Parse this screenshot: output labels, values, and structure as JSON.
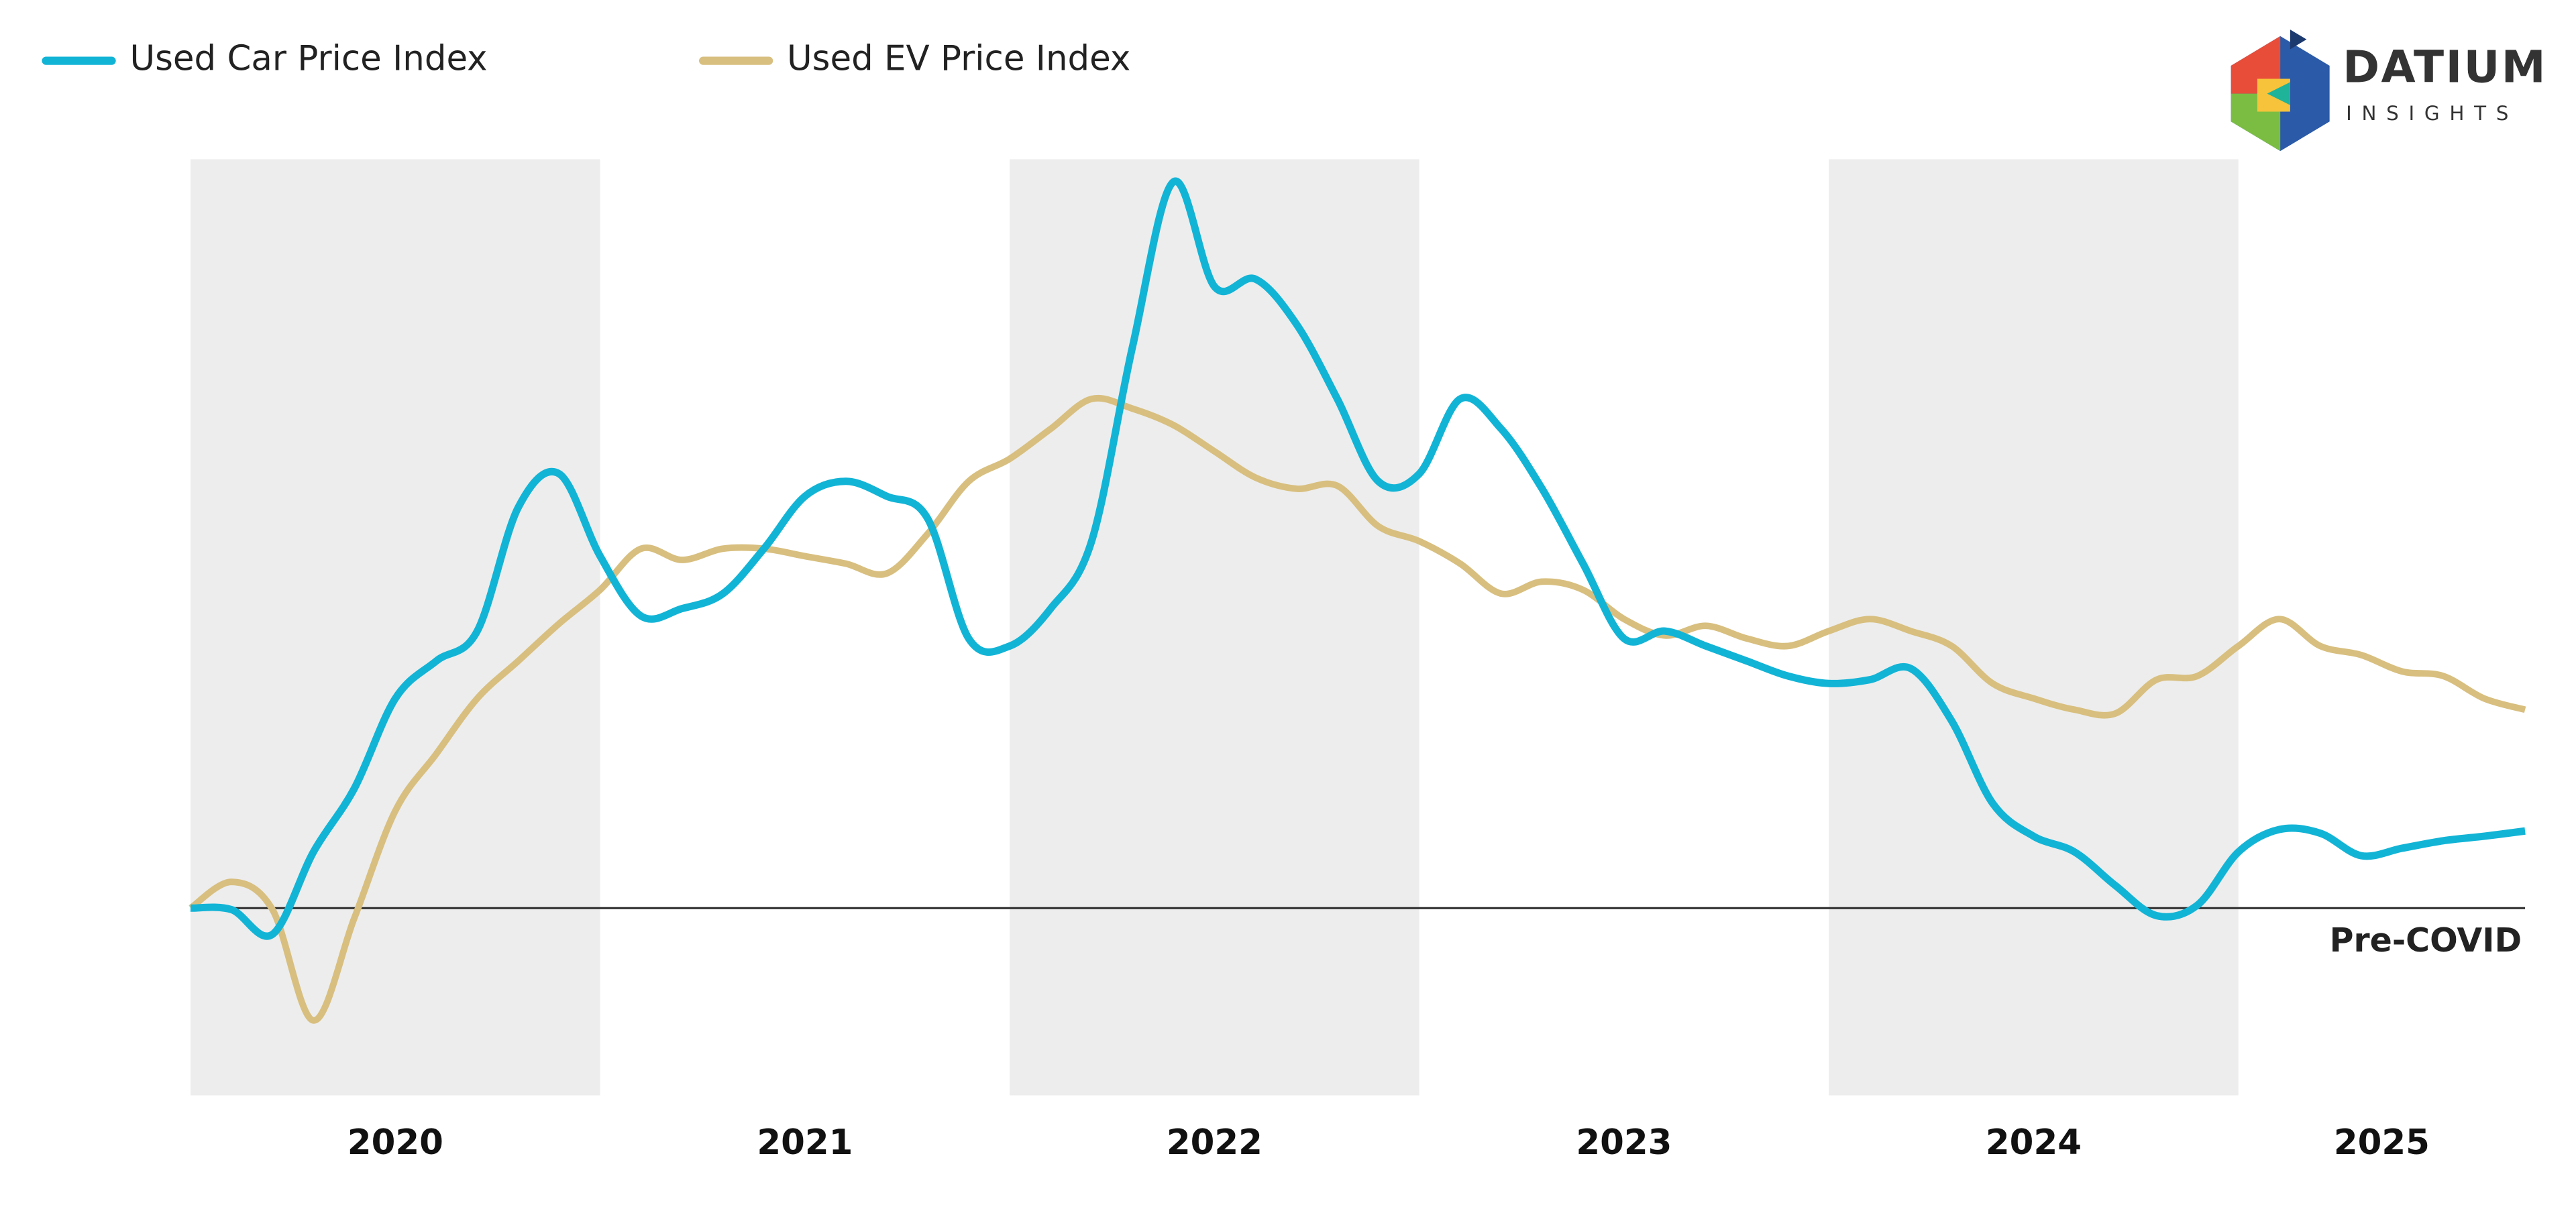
{
  "chart_data": {
    "type": "line",
    "x": [
      2020.0,
      2020.1,
      2020.2,
      2020.3,
      2020.4,
      2020.5,
      2020.6,
      2020.7,
      2020.8,
      2020.9,
      2021.0,
      2021.1,
      2021.2,
      2021.3,
      2021.4,
      2021.5,
      2021.6,
      2021.7,
      2021.8,
      2021.9,
      2022.0,
      2022.1,
      2022.2,
      2022.3,
      2022.4,
      2022.5,
      2022.6,
      2022.7,
      2022.8,
      2022.9,
      2023.0,
      2023.1,
      2023.2,
      2023.3,
      2023.4,
      2023.5,
      2023.6,
      2023.7,
      2023.8,
      2023.9,
      2024.0,
      2024.1,
      2024.2,
      2024.3,
      2024.4,
      2024.5,
      2024.6,
      2024.7,
      2024.8,
      2024.9,
      2025.0,
      2025.1,
      2025.2,
      2025.3,
      2025.4,
      2025.5,
      2025.6,
      2025.7
    ],
    "series": [
      {
        "name": "Used Car Price Index",
        "color": "#12b4d6",
        "values": [
          0,
          -0.2,
          -3.5,
          7.5,
          16,
          28,
          33,
          37,
          53.5,
          58,
          47,
          39,
          40,
          42,
          48,
          55,
          57,
          55,
          52,
          36,
          35,
          40,
          49,
          75,
          97,
          83,
          84,
          78,
          68,
          57,
          58,
          68,
          64,
          56,
          46,
          36,
          37,
          35,
          33,
          31,
          30,
          30.5,
          32,
          25,
          14,
          9.6,
          7.5,
          3,
          -1,
          0.4,
          7.5,
          10.5,
          10,
          7,
          8,
          9,
          9.6,
          10.3
        ]
      },
      {
        "name": "Used EV Price Index",
        "color": "#d8bf7f",
        "values": [
          0,
          3.5,
          -0.2,
          -15,
          -1.3,
          13,
          20.6,
          28,
          33,
          38,
          42.5,
          48,
          46.5,
          48,
          48,
          47,
          46,
          44.7,
          50,
          57,
          60,
          64,
          68,
          66.7,
          64.5,
          61,
          57.5,
          56,
          56.4,
          51,
          49,
          46,
          42,
          43.6,
          42.5,
          38.6,
          36.4,
          37.7,
          36,
          35,
          37,
          38.6,
          37,
          35,
          30,
          28,
          26.5,
          26,
          30.5,
          31,
          35,
          38.6,
          35,
          33.8,
          31.6,
          31,
          28,
          26.5
        ]
      }
    ],
    "xlim": [
      2020,
      2025.7
    ],
    "xticks": [
      {
        "value": 2020.5,
        "label": "2020"
      },
      {
        "value": 2021.5,
        "label": "2021"
      },
      {
        "value": 2022.5,
        "label": "2022"
      },
      {
        "value": 2023.5,
        "label": "2023"
      },
      {
        "value": 2024.5,
        "label": "2024"
      },
      {
        "value": 2025.35,
        "label": "2025"
      }
    ],
    "ylim": [
      -25,
      100
    ],
    "reference_line": {
      "value": 0,
      "label": "Pre-COVID"
    },
    "legend": "top-left"
  },
  "logo": {
    "name": "DATIUM",
    "tagline": "INSIGHTS"
  }
}
